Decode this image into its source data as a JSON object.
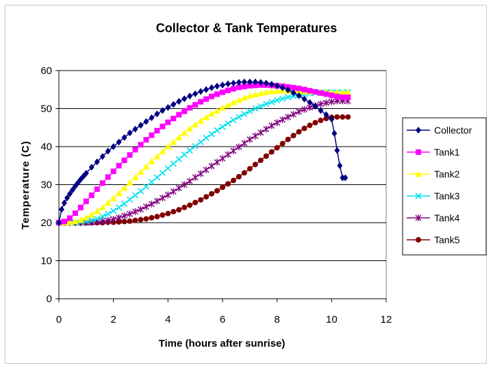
{
  "chart_data": {
    "type": "line",
    "title": "Collector & Tank Temperatures",
    "xlabel": "Time (hours after sunrise)",
    "ylabel": "Temperature (C)",
    "xlim": [
      0,
      12
    ],
    "ylim": [
      0,
      60
    ],
    "xticks": [
      0,
      2,
      4,
      6,
      8,
      10,
      12
    ],
    "yticks": [
      0,
      10,
      20,
      30,
      40,
      50,
      60
    ],
    "grid": "horizontal",
    "legend_position": "right",
    "series": [
      {
        "name": "Collector",
        "color": "#000080",
        "marker": "diamond",
        "x": [
          0.0,
          0.1,
          0.2,
          0.3,
          0.4,
          0.5,
          0.6,
          0.7,
          0.8,
          0.9,
          1.0,
          1.2,
          1.4,
          1.6,
          1.8,
          2.0,
          2.2,
          2.4,
          2.6,
          2.8,
          3.0,
          3.2,
          3.4,
          3.6,
          3.8,
          4.0,
          4.2,
          4.4,
          4.6,
          4.8,
          5.0,
          5.2,
          5.4,
          5.6,
          5.8,
          6.0,
          6.2,
          6.4,
          6.6,
          6.8,
          7.0,
          7.2,
          7.4,
          7.6,
          7.8,
          8.0,
          8.2,
          8.4,
          8.6,
          8.8,
          9.0,
          9.2,
          9.4,
          9.6,
          9.8,
          10.0,
          10.1,
          10.2,
          10.3,
          10.4,
          10.5
        ],
        "y": [
          20.0,
          23.5,
          25.2,
          26.5,
          27.6,
          28.6,
          29.6,
          30.5,
          31.4,
          32.2,
          33.0,
          34.6,
          36.0,
          37.4,
          38.8,
          40.0,
          41.2,
          42.4,
          43.6,
          44.6,
          45.6,
          46.6,
          47.6,
          48.6,
          49.5,
          50.3,
          51.1,
          51.9,
          52.6,
          53.3,
          53.9,
          54.5,
          55.0,
          55.5,
          55.9,
          56.2,
          56.5,
          56.7,
          56.9,
          57.0,
          57.0,
          57.0,
          56.9,
          56.7,
          56.4,
          56.0,
          55.5,
          54.9,
          54.2,
          53.4,
          52.5,
          51.6,
          50.6,
          49.5,
          48.4,
          47.2,
          43.5,
          39.0,
          35.0,
          31.8,
          31.8
        ]
      },
      {
        "name": "Tank1",
        "color": "#ff00ff",
        "marker": "square",
        "x": [
          0.0,
          0.2,
          0.4,
          0.6,
          0.8,
          1.0,
          1.2,
          1.4,
          1.6,
          1.8,
          2.0,
          2.2,
          2.4,
          2.6,
          2.8,
          3.0,
          3.2,
          3.4,
          3.6,
          3.8,
          4.0,
          4.2,
          4.4,
          4.6,
          4.8,
          5.0,
          5.2,
          5.4,
          5.6,
          5.8,
          6.0,
          6.2,
          6.4,
          6.6,
          6.8,
          7.0,
          7.2,
          7.4,
          7.6,
          7.8,
          8.0,
          8.2,
          8.4,
          8.6,
          8.8,
          9.0,
          9.2,
          9.4,
          9.6,
          9.8,
          10.0,
          10.2,
          10.4,
          10.6
        ],
        "y": [
          20.0,
          20.3,
          21.2,
          22.5,
          24.0,
          25.6,
          27.2,
          28.8,
          30.4,
          32.0,
          33.5,
          35.0,
          36.4,
          37.8,
          39.2,
          40.5,
          41.8,
          43.0,
          44.2,
          45.3,
          46.4,
          47.4,
          48.4,
          49.3,
          50.2,
          51.0,
          51.8,
          52.5,
          53.2,
          53.8,
          54.3,
          54.8,
          55.2,
          55.6,
          55.8,
          56.0,
          56.1,
          56.2,
          56.2,
          56.1,
          56.0,
          55.9,
          55.7,
          55.5,
          55.3,
          55.0,
          54.7,
          54.4,
          54.1,
          53.8,
          53.5,
          53.2,
          53.0,
          53.0
        ]
      },
      {
        "name": "Tank2",
        "color": "#ffff00",
        "marker": "triangle",
        "x": [
          0.0,
          0.2,
          0.4,
          0.6,
          0.8,
          1.0,
          1.2,
          1.4,
          1.6,
          1.8,
          2.0,
          2.2,
          2.4,
          2.6,
          2.8,
          3.0,
          3.2,
          3.4,
          3.6,
          3.8,
          4.0,
          4.2,
          4.4,
          4.6,
          4.8,
          5.0,
          5.2,
          5.4,
          5.6,
          5.8,
          6.0,
          6.2,
          6.4,
          6.6,
          6.8,
          7.0,
          7.2,
          7.4,
          7.6,
          7.8,
          8.0,
          8.2,
          8.4,
          8.6,
          8.8,
          9.0,
          9.2,
          9.4,
          9.6,
          9.8,
          10.0,
          10.2,
          10.4,
          10.6
        ],
        "y": [
          20.0,
          20.0,
          20.1,
          20.3,
          20.7,
          21.3,
          22.1,
          23.0,
          24.0,
          25.2,
          26.4,
          27.7,
          29.1,
          30.5,
          31.9,
          33.3,
          34.7,
          36.1,
          37.4,
          38.7,
          40.0,
          41.2,
          42.4,
          43.6,
          44.7,
          45.8,
          46.8,
          47.7,
          48.6,
          49.4,
          50.2,
          50.9,
          51.6,
          52.2,
          52.8,
          53.3,
          53.7,
          54.0,
          54.3,
          54.5,
          54.6,
          54.7,
          54.7,
          54.7,
          54.6,
          54.5,
          54.5,
          54.4,
          54.4,
          54.4,
          54.3,
          54.3,
          54.3,
          54.3
        ]
      },
      {
        "name": "Tank3",
        "color": "#00e0f0",
        "marker": "x",
        "x": [
          0.0,
          0.2,
          0.4,
          0.6,
          0.8,
          1.0,
          1.2,
          1.4,
          1.6,
          1.8,
          2.0,
          2.2,
          2.4,
          2.6,
          2.8,
          3.0,
          3.2,
          3.4,
          3.6,
          3.8,
          4.0,
          4.2,
          4.4,
          4.6,
          4.8,
          5.0,
          5.2,
          5.4,
          5.6,
          5.8,
          6.0,
          6.2,
          6.4,
          6.6,
          6.8,
          7.0,
          7.2,
          7.4,
          7.6,
          7.8,
          8.0,
          8.2,
          8.4,
          8.6,
          8.8,
          9.0,
          9.2,
          9.4,
          9.6,
          9.8,
          10.0,
          10.2,
          10.4,
          10.6
        ],
        "y": [
          20.0,
          20.0,
          20.0,
          20.0,
          20.1,
          20.3,
          20.6,
          21.0,
          21.6,
          22.3,
          23.1,
          24.0,
          25.0,
          26.1,
          27.2,
          28.3,
          29.5,
          30.7,
          31.9,
          33.1,
          34.3,
          35.5,
          36.7,
          37.9,
          39.0,
          40.1,
          41.2,
          42.3,
          43.3,
          44.3,
          45.2,
          46.1,
          47.0,
          47.8,
          48.6,
          49.3,
          50.0,
          50.6,
          51.2,
          51.7,
          52.2,
          52.6,
          53.0,
          53.3,
          53.6,
          53.8,
          54.0,
          54.1,
          54.2,
          54.3,
          54.3,
          54.3,
          54.3,
          54.3
        ]
      },
      {
        "name": "Tank4",
        "color": "#800080",
        "marker": "star",
        "x": [
          0.0,
          0.2,
          0.4,
          0.6,
          0.8,
          1.0,
          1.2,
          1.4,
          1.6,
          1.8,
          2.0,
          2.2,
          2.4,
          2.6,
          2.8,
          3.0,
          3.2,
          3.4,
          3.6,
          3.8,
          4.0,
          4.2,
          4.4,
          4.6,
          4.8,
          5.0,
          5.2,
          5.4,
          5.6,
          5.8,
          6.0,
          6.2,
          6.4,
          6.6,
          6.8,
          7.0,
          7.2,
          7.4,
          7.6,
          7.8,
          8.0,
          8.2,
          8.4,
          8.6,
          8.8,
          9.0,
          9.2,
          9.4,
          9.6,
          9.8,
          10.0,
          10.2,
          10.4,
          10.6
        ],
        "y": [
          20.0,
          20.0,
          20.0,
          20.0,
          20.0,
          20.0,
          20.1,
          20.2,
          20.4,
          20.6,
          20.9,
          21.3,
          21.8,
          22.3,
          22.9,
          23.5,
          24.2,
          24.9,
          25.7,
          26.5,
          27.3,
          28.2,
          29.1,
          30.0,
          30.9,
          31.9,
          32.9,
          33.9,
          34.9,
          35.9,
          36.9,
          37.9,
          38.9,
          39.9,
          40.9,
          41.9,
          42.8,
          43.7,
          44.6,
          45.5,
          46.3,
          47.1,
          47.8,
          48.5,
          49.2,
          49.8,
          50.3,
          50.8,
          51.2,
          51.5,
          51.8,
          52.0,
          52.0,
          52.0
        ]
      },
      {
        "name": "Tank5",
        "color": "#800000",
        "marker": "circle",
        "x": [
          0.0,
          0.2,
          0.4,
          0.6,
          0.8,
          1.0,
          1.2,
          1.4,
          1.6,
          1.8,
          2.0,
          2.2,
          2.4,
          2.6,
          2.8,
          3.0,
          3.2,
          3.4,
          3.6,
          3.8,
          4.0,
          4.2,
          4.4,
          4.6,
          4.8,
          5.0,
          5.2,
          5.4,
          5.6,
          5.8,
          6.0,
          6.2,
          6.4,
          6.6,
          6.8,
          7.0,
          7.2,
          7.4,
          7.6,
          7.8,
          8.0,
          8.2,
          8.4,
          8.6,
          8.8,
          9.0,
          9.2,
          9.4,
          9.6,
          9.8,
          10.0,
          10.2,
          10.4,
          10.6
        ],
        "y": [
          20.0,
          20.0,
          20.0,
          20.0,
          20.0,
          20.0,
          20.0,
          20.0,
          20.0,
          20.1,
          20.1,
          20.2,
          20.3,
          20.4,
          20.6,
          20.8,
          21.0,
          21.3,
          21.6,
          22.0,
          22.4,
          22.9,
          23.4,
          24.0,
          24.6,
          25.3,
          26.0,
          26.8,
          27.6,
          28.4,
          29.3,
          30.2,
          31.1,
          32.1,
          33.1,
          34.2,
          35.3,
          36.4,
          37.5,
          38.6,
          39.7,
          40.8,
          41.9,
          42.9,
          43.9,
          44.8,
          45.6,
          46.3,
          46.9,
          47.4,
          47.7,
          47.8,
          47.8,
          47.8
        ]
      }
    ]
  }
}
